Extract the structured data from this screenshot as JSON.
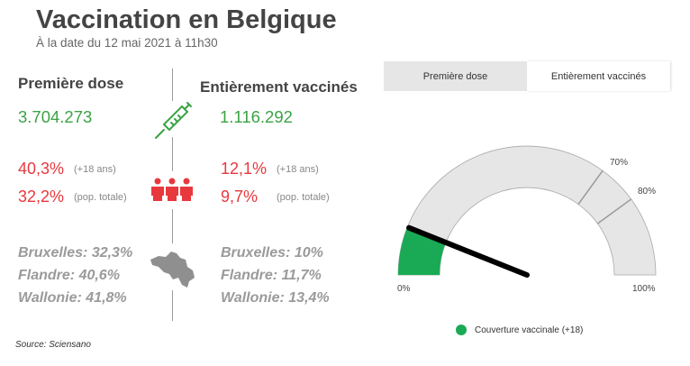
{
  "header": {
    "title": "Vaccination en Belgique",
    "subtitle": "À la date du 12 mai 2021 à 11h30"
  },
  "first_dose": {
    "heading": "Première dose",
    "count": "3.704.273",
    "pct_adult": "40,3%",
    "pct_adult_note": "(+18 ans)",
    "pct_total": "32,2%",
    "pct_total_note": "(pop. totale)",
    "regions": [
      "Bruxelles: 32,3%",
      "Flandre: 40,6%",
      "Wallonie: 41,8%"
    ]
  },
  "fully_vaccinated": {
    "heading": "Entièrement vaccinés",
    "count": "1.116.292",
    "pct_adult": "12,1%",
    "pct_adult_note": "(+18 ans)",
    "pct_total": "9,7%",
    "pct_total_note": "(pop. totale)",
    "regions": [
      "Bruxelles: 10%",
      "Flandre: 11,7%",
      "Wallonie: 13,4%"
    ]
  },
  "icons": [
    "syringe-icon",
    "people-icon",
    "belgium-map-icon"
  ],
  "source": "Source: Sciensano",
  "tabs": [
    {
      "label": "Première dose",
      "active": false
    },
    {
      "label": "Entièrement vaccinés",
      "active": true
    }
  ],
  "colors": {
    "green": "#3aa345",
    "red": "#e8383d",
    "gauge_fill": "#1aaa55",
    "gauge_bg": "#e6e6e6",
    "needle": "#000000"
  },
  "chart_data": {
    "type": "gauge",
    "min": 0,
    "max": 100,
    "value": 12.1,
    "min_label": "0%",
    "max_label": "100%",
    "bands": [
      {
        "value": 70,
        "label": "70%"
      },
      {
        "value": 80,
        "label": "80%"
      }
    ],
    "legend": [
      {
        "label": "Couverture vaccinale (+18)",
        "color": "#1aaa55"
      }
    ]
  }
}
